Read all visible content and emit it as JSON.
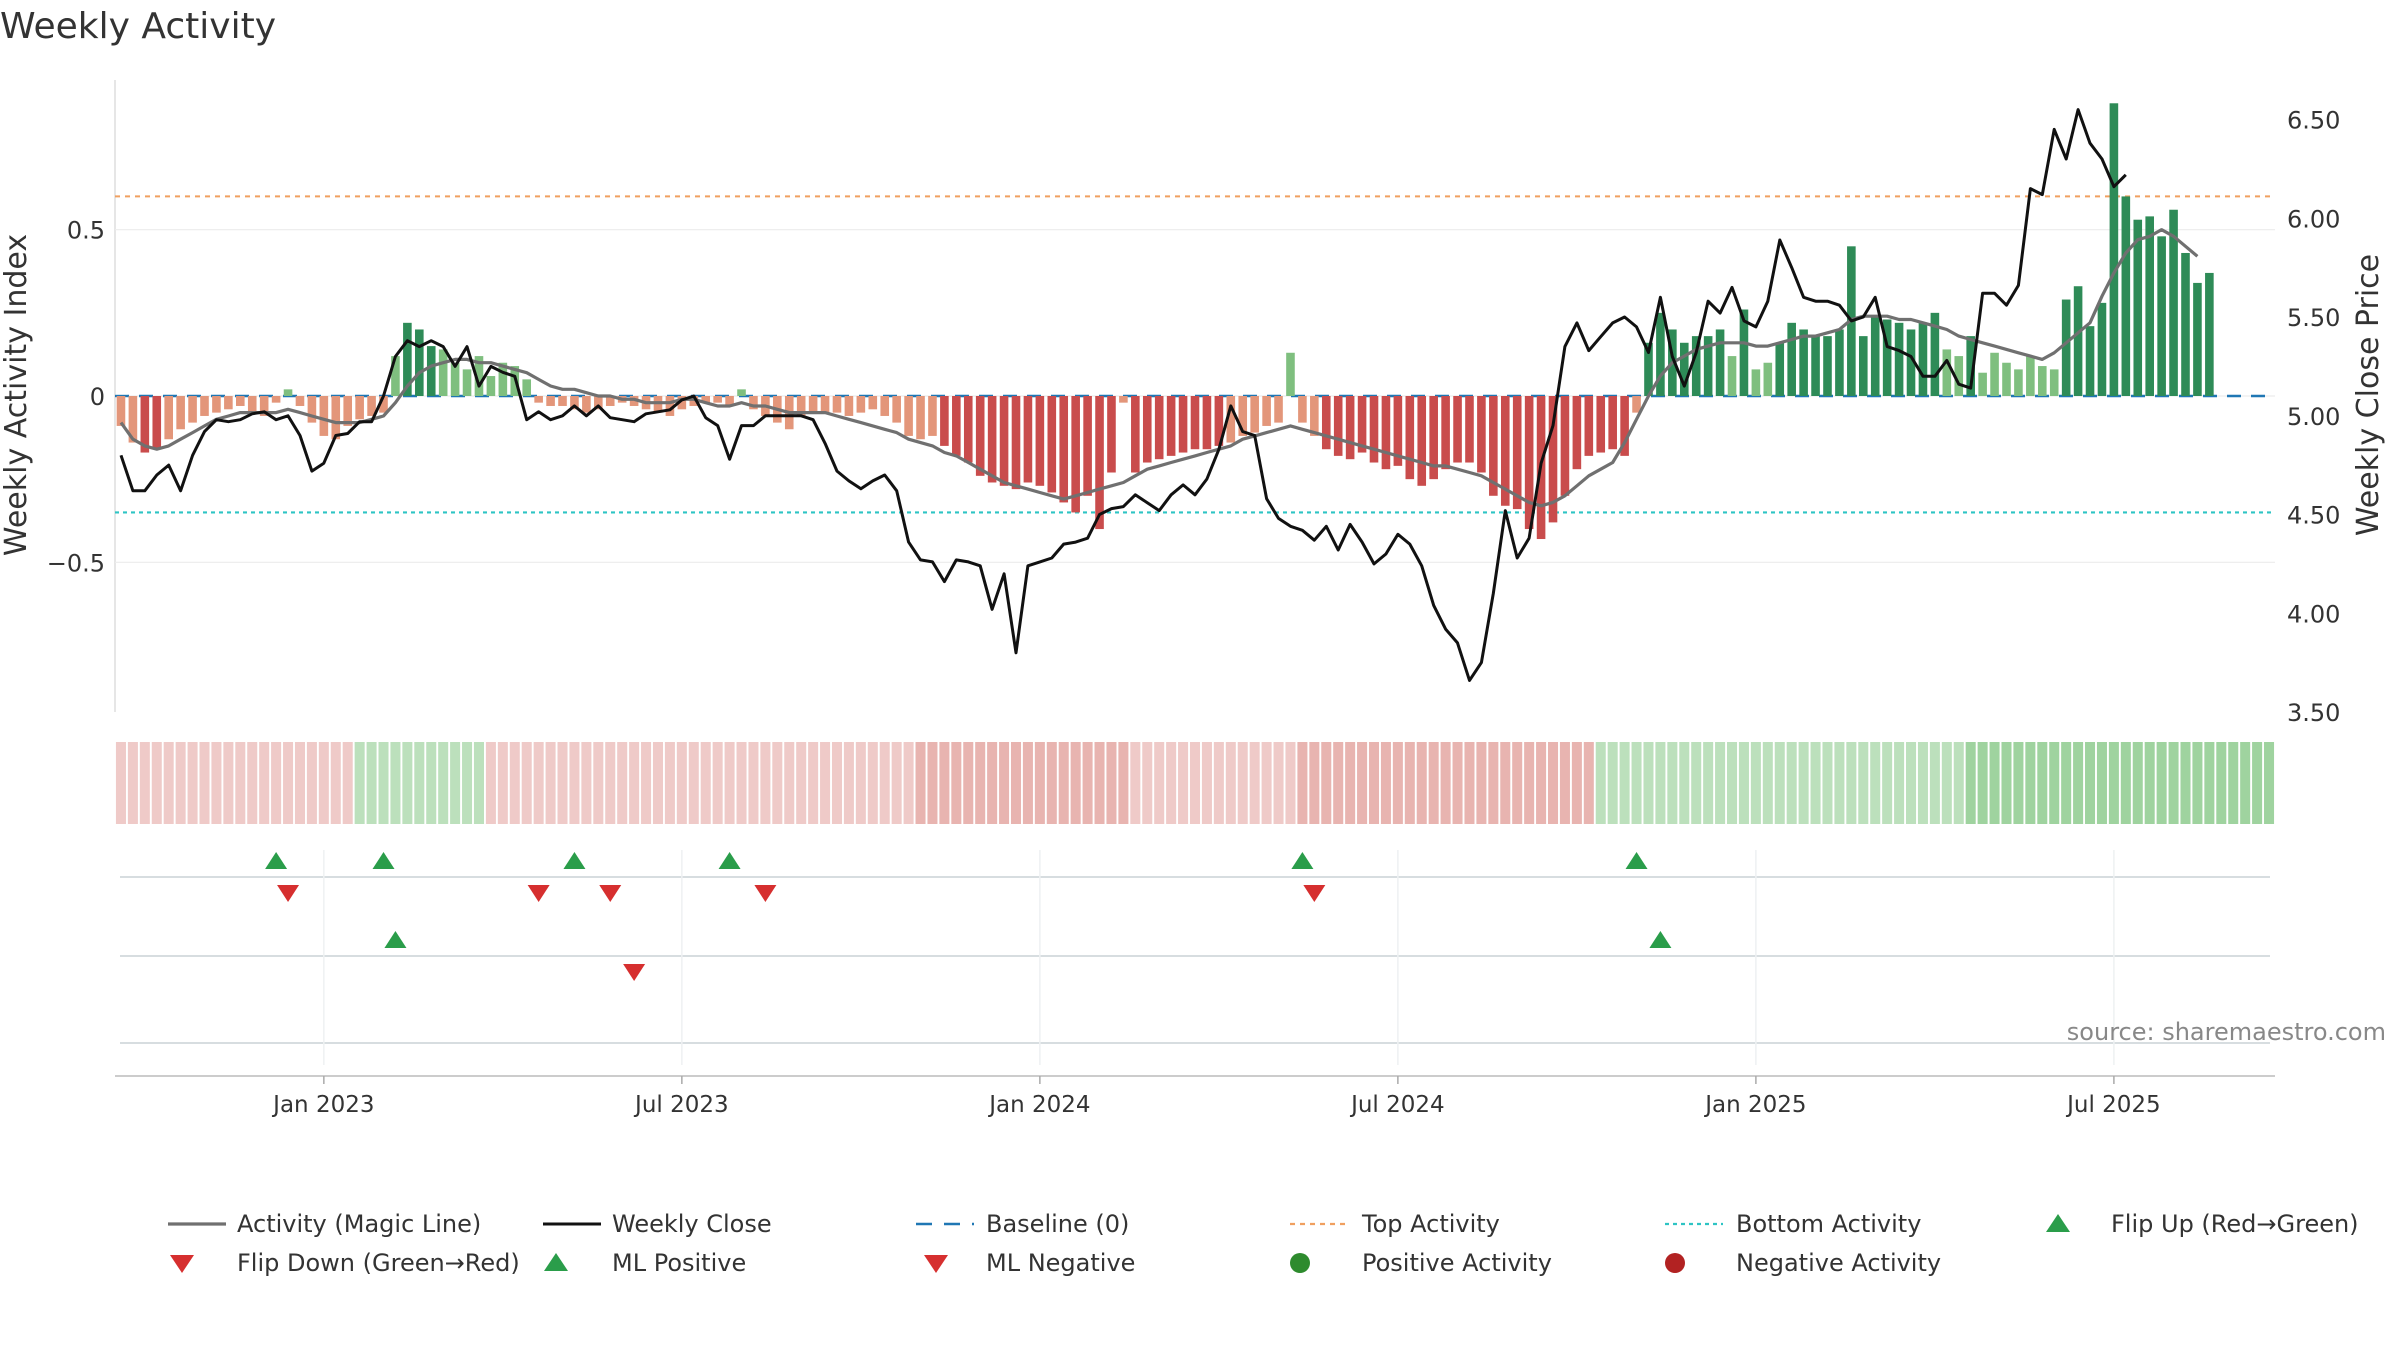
{
  "chart_data": {
    "type": "bar",
    "title": "Weekly Activity",
    "ylabel_left": "Weekly Activity Index",
    "ylabel_right": "Weekly Close Price",
    "source": "source: sharemaestro.com",
    "left_ylim": [
      -0.95,
      0.95
    ],
    "right_ylim": [
      3.5,
      6.7
    ],
    "left_ticks": [
      {
        "value": 0.5,
        "label": "0.5"
      },
      {
        "value": 0,
        "label": "0"
      },
      {
        "value": -0.5,
        "label": "−0.5"
      }
    ],
    "right_ticks": [
      {
        "value": 6.5,
        "label": "6.50"
      },
      {
        "value": 6.0,
        "label": "6.00"
      },
      {
        "value": 5.5,
        "label": "5.50"
      },
      {
        "value": 5.0,
        "label": "5.00"
      },
      {
        "value": 4.5,
        "label": "4.50"
      },
      {
        "value": 4.0,
        "label": "4.00"
      },
      {
        "value": 3.5,
        "label": "3.50"
      }
    ],
    "x_ticks": [
      {
        "week": 17,
        "label": "Jan 2023"
      },
      {
        "week": 47,
        "label": "Jul 2023"
      },
      {
        "week": 77,
        "label": "Jan 2024"
      },
      {
        "week": 107,
        "label": "Jul 2024"
      },
      {
        "week": 137,
        "label": "Jan 2025"
      },
      {
        "week": 167,
        "label": "Jul 2025"
      }
    ],
    "x_range": [
      -0.5,
      180.5
    ],
    "top_activity": 0.6,
    "bottom_activity": -0.35,
    "baseline": 0,
    "activity": [
      -0.09,
      -0.14,
      -0.17,
      -0.16,
      -0.13,
      -0.1,
      -0.08,
      -0.06,
      -0.05,
      -0.04,
      -0.03,
      -0.05,
      -0.06,
      -0.02,
      0.02,
      -0.03,
      -0.08,
      -0.12,
      -0.13,
      -0.09,
      -0.07,
      -0.06,
      -0.05,
      0.12,
      0.22,
      0.2,
      0.15,
      0.14,
      0.1,
      0.08,
      0.12,
      0.06,
      0.1,
      0.09,
      0.05,
      -0.02,
      -0.03,
      -0.03,
      -0.04,
      -0.05,
      -0.04,
      -0.03,
      -0.02,
      -0.03,
      -0.04,
      -0.05,
      -0.06,
      -0.04,
      -0.03,
      -0.02,
      -0.02,
      -0.03,
      0.02,
      -0.04,
      -0.06,
      -0.08,
      -0.1,
      -0.06,
      -0.05,
      -0.05,
      -0.05,
      -0.06,
      -0.05,
      -0.04,
      -0.06,
      -0.08,
      -0.12,
      -0.13,
      -0.12,
      -0.15,
      -0.18,
      -0.2,
      -0.24,
      -0.26,
      -0.27,
      -0.28,
      -0.26,
      -0.27,
      -0.29,
      -0.32,
      -0.35,
      -0.3,
      -0.4,
      -0.23,
      -0.02,
      -0.23,
      -0.2,
      -0.19,
      -0.18,
      -0.17,
      -0.16,
      -0.16,
      -0.15,
      -0.14,
      -0.12,
      -0.11,
      -0.09,
      -0.08,
      0.13,
      -0.08,
      -0.12,
      -0.16,
      -0.18,
      -0.19,
      -0.17,
      -0.2,
      -0.22,
      -0.21,
      -0.25,
      -0.27,
      -0.25,
      -0.22,
      -0.2,
      -0.2,
      -0.23,
      -0.3,
      -0.33,
      -0.34,
      -0.4,
      -0.43,
      -0.38,
      -0.3,
      -0.22,
      -0.18,
      -0.17,
      -0.16,
      -0.18,
      -0.05,
      0.16,
      0.25,
      0.2,
      0.16,
      0.18,
      0.18,
      0.2,
      0.12,
      0.26,
      0.08,
      0.1,
      0.16,
      0.22,
      0.2,
      0.18,
      0.18,
      0.2,
      0.45,
      0.18,
      0.24,
      0.23,
      0.22,
      0.2,
      0.22,
      0.25,
      0.14,
      0.12,
      0.18,
      0.07,
      0.13,
      0.1,
      0.08,
      0.12,
      0.09,
      0.08,
      0.29,
      0.33,
      0.21,
      0.28,
      0.88,
      0.6,
      0.53,
      0.54,
      0.48,
      0.56,
      0.43,
      0.34,
      0.37
    ],
    "weekly_close": [
      4.8,
      4.62,
      4.62,
      4.7,
      4.75,
      4.62,
      4.8,
      4.92,
      4.98,
      4.97,
      4.98,
      5.01,
      5.02,
      4.98,
      5.0,
      4.9,
      4.72,
      4.76,
      4.9,
      4.91,
      4.97,
      4.97,
      5.1,
      5.3,
      5.38,
      5.35,
      5.38,
      5.35,
      5.25,
      5.35,
      5.15,
      5.25,
      5.22,
      5.2,
      4.98,
      5.02,
      4.98,
      5.0,
      5.05,
      5.0,
      5.05,
      4.99,
      4.98,
      4.97,
      5.01,
      5.02,
      5.03,
      5.08,
      5.1,
      4.99,
      4.95,
      4.78,
      4.95,
      4.95,
      5.0,
      5.0,
      5.0,
      5.0,
      4.98,
      4.86,
      4.72,
      4.67,
      4.63,
      4.67,
      4.7,
      4.62,
      4.36,
      4.27,
      4.26,
      4.16,
      4.27,
      4.26,
      4.24,
      4.02,
      4.2,
      3.8,
      4.24,
      4.26,
      4.28,
      4.35,
      4.36,
      4.38,
      4.5,
      4.53,
      4.54,
      4.6,
      4.56,
      4.52,
      4.6,
      4.65,
      4.6,
      4.68,
      4.83,
      5.05,
      4.92,
      4.9,
      4.58,
      4.48,
      4.44,
      4.42,
      4.37,
      4.44,
      4.32,
      4.45,
      4.36,
      4.25,
      4.3,
      4.4,
      4.35,
      4.24,
      4.04,
      3.92,
      3.85,
      3.66,
      3.75,
      4.1,
      4.52,
      4.28,
      4.38,
      4.76,
      4.95,
      5.35,
      5.47,
      5.33,
      5.4,
      5.47,
      5.5,
      5.45,
      5.32,
      5.6,
      5.3,
      5.15,
      5.32,
      5.58,
      5.52,
      5.65,
      5.48,
      5.45,
      5.58,
      5.89,
      5.75,
      5.6,
      5.58,
      5.58,
      5.56,
      5.48,
      5.5,
      5.6,
      5.35,
      5.33,
      5.3,
      5.2,
      5.2,
      5.28,
      5.16,
      5.14,
      5.62,
      5.62,
      5.56,
      5.66,
      6.15,
      6.12,
      6.45,
      6.3,
      6.55,
      6.38,
      6.3,
      6.16,
      6.22
    ],
    "magic_line": [
      -0.08,
      -0.13,
      -0.15,
      -0.16,
      -0.15,
      -0.13,
      -0.11,
      -0.09,
      -0.07,
      -0.06,
      -0.05,
      -0.05,
      -0.05,
      -0.05,
      -0.04,
      -0.05,
      -0.06,
      -0.07,
      -0.08,
      -0.08,
      -0.08,
      -0.07,
      -0.06,
      -0.02,
      0.03,
      0.07,
      0.09,
      0.1,
      0.11,
      0.11,
      0.1,
      0.1,
      0.09,
      0.08,
      0.07,
      0.05,
      0.03,
      0.02,
      0.02,
      0.01,
      0.0,
      0.0,
      -0.01,
      -0.01,
      -0.02,
      -0.02,
      -0.02,
      -0.01,
      -0.01,
      -0.02,
      -0.03,
      -0.03,
      -0.02,
      -0.03,
      -0.03,
      -0.04,
      -0.05,
      -0.05,
      -0.05,
      -0.05,
      -0.06,
      -0.07,
      -0.08,
      -0.09,
      -0.1,
      -0.11,
      -0.13,
      -0.14,
      -0.15,
      -0.17,
      -0.18,
      -0.2,
      -0.22,
      -0.24,
      -0.26,
      -0.27,
      -0.28,
      -0.29,
      -0.3,
      -0.31,
      -0.3,
      -0.29,
      -0.28,
      -0.27,
      -0.26,
      -0.24,
      -0.22,
      -0.21,
      -0.2,
      -0.19,
      -0.18,
      -0.17,
      -0.16,
      -0.15,
      -0.13,
      -0.12,
      -0.11,
      -0.1,
      -0.09,
      -0.1,
      -0.11,
      -0.12,
      -0.13,
      -0.14,
      -0.15,
      -0.16,
      -0.17,
      -0.18,
      -0.19,
      -0.2,
      -0.21,
      -0.21,
      -0.22,
      -0.23,
      -0.24,
      -0.26,
      -0.28,
      -0.3,
      -0.32,
      -0.33,
      -0.32,
      -0.3,
      -0.27,
      -0.24,
      -0.22,
      -0.2,
      -0.14,
      -0.07,
      0.0,
      0.06,
      0.1,
      0.12,
      0.14,
      0.15,
      0.16,
      0.16,
      0.16,
      0.15,
      0.15,
      0.16,
      0.17,
      0.18,
      0.18,
      0.19,
      0.2,
      0.23,
      0.24,
      0.24,
      0.24,
      0.23,
      0.23,
      0.22,
      0.21,
      0.2,
      0.18,
      0.17,
      0.16,
      0.15,
      0.14,
      0.13,
      0.12,
      0.11,
      0.13,
      0.16,
      0.19,
      0.22,
      0.3,
      0.37,
      0.43,
      0.47,
      0.48,
      0.5,
      0.48,
      0.45,
      0.42
    ],
    "strip": [
      {
        "from": 0,
        "to": 19,
        "kind": "neg"
      },
      {
        "from": 20,
        "to": 30,
        "kind": "pos"
      },
      {
        "from": 31,
        "to": 66,
        "kind": "neg"
      },
      {
        "from": 67,
        "to": 84,
        "kind": "neg-strong"
      },
      {
        "from": 85,
        "to": 98,
        "kind": "neg"
      },
      {
        "from": 99,
        "to": 123,
        "kind": "neg-strong"
      },
      {
        "from": 124,
        "to": 154,
        "kind": "pos"
      },
      {
        "from": 155,
        "to": 180,
        "kind": "pos-strong"
      }
    ],
    "signal_rows": {
      "flip_up": [
        13,
        22,
        38,
        51,
        99,
        127
      ],
      "flip_down": [
        14,
        35,
        41,
        54,
        100
      ],
      "ml_positive": [
        23,
        129
      ],
      "ml_negative": [
        43
      ]
    },
    "colors": {
      "pos_strong": "#2e8b57",
      "pos_light": "#7fbf7f",
      "neg_strong": "#c94c4c",
      "neg_light": "#e3967a",
      "magic_line": "#707070",
      "close_line": "#111111",
      "baseline": "#1f77b4",
      "top_activity": "#f0a060",
      "bottom_activity": "#2ec4c4",
      "triangle_up": "#2a9d4a",
      "triangle_down": "#d62f2f",
      "dot_positive": "#2e8b2e",
      "dot_negative": "#b22222",
      "strip_pos": "#9fd39f",
      "strip_neg": "#e8b4b0"
    },
    "legend": [
      {
        "key": "magic-line",
        "label": "Activity (Magic Line)"
      },
      {
        "key": "weekly-close",
        "label": "Weekly Close"
      },
      {
        "key": "baseline",
        "label": "Baseline (0)"
      },
      {
        "key": "top-activity",
        "label": "Top Activity"
      },
      {
        "key": "bottom-activity",
        "label": "Bottom Activity"
      },
      {
        "key": "flip-up",
        "label": "Flip Up (Red→Green)"
      },
      {
        "key": "flip-down",
        "label": "Flip Down (Green→Red)"
      },
      {
        "key": "ml-positive",
        "label": "ML Positive"
      },
      {
        "key": "ml-negative",
        "label": "ML Negative"
      },
      {
        "key": "positive-activity",
        "label": "Positive Activity"
      },
      {
        "key": "negative-activity",
        "label": "Negative Activity"
      }
    ]
  }
}
